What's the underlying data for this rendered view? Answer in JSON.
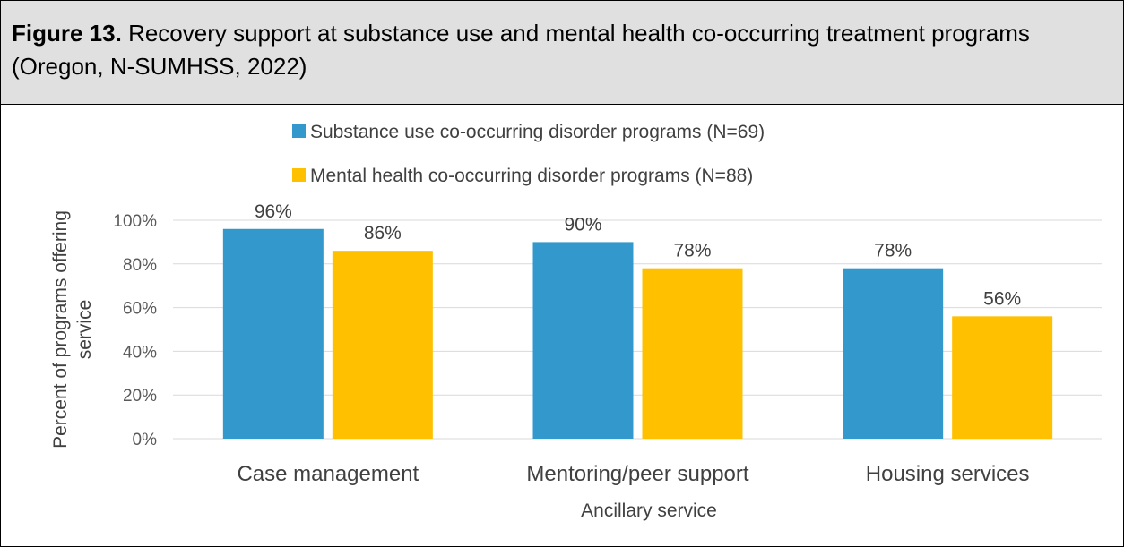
{
  "figure": {
    "label": "Figure 13.",
    "caption": "Recovery support at substance use and mental health co-occurring treatment programs (Oregon, N-SUMHSS, 2022)"
  },
  "chart_data": {
    "type": "bar",
    "categories": [
      "Case management",
      "Mentoring/peer support",
      "Housing services"
    ],
    "series": [
      {
        "name": "Substance use co-occurring disorder programs (N=69)",
        "values": [
          96,
          90,
          78
        ],
        "labels": [
          "96%",
          "90%",
          "78%"
        ],
        "color": "#3399cc"
      },
      {
        "name": "Mental health co-occurring disorder programs (N=88)",
        "values": [
          86,
          78,
          56
        ],
        "labels": [
          "86%",
          "78%",
          "56%"
        ],
        "color": "#ffc000"
      }
    ],
    "xlabel": "Ancillary service",
    "ylabel": "Percent of programs offering service",
    "ylim": [
      0,
      100
    ],
    "yticks": [
      0,
      20,
      40,
      60,
      80,
      100
    ],
    "ytick_labels": [
      "0%",
      "20%",
      "40%",
      "60%",
      "80%",
      "100%"
    ],
    "grid": true,
    "legend_position": "top"
  }
}
